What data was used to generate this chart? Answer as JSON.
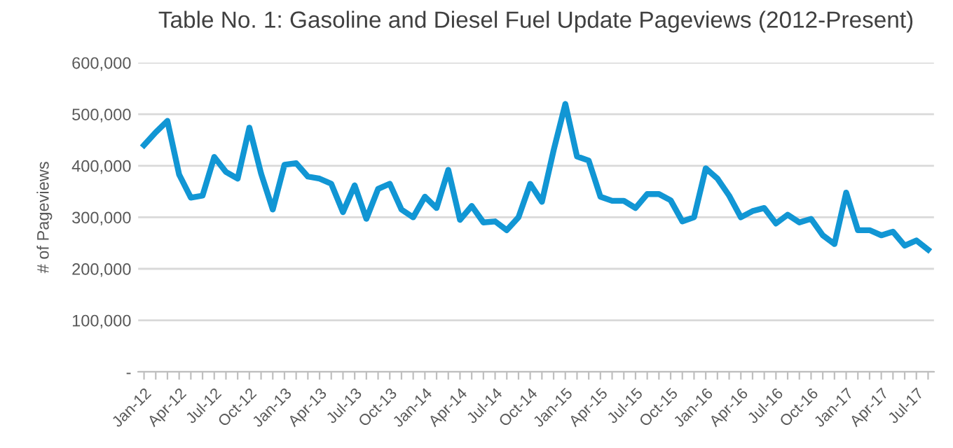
{
  "chart_data": {
    "type": "line",
    "title": "Table No. 1: Gasoline and Diesel Fuel Update Pageviews (2012-Present)",
    "ylabel": "# of Pageviews",
    "categories": [
      "Jan-12",
      null,
      null,
      "Apr-12",
      null,
      null,
      "Jul-12",
      null,
      null,
      "Oct-12",
      null,
      null,
      "Jan-13",
      null,
      null,
      "Apr-13",
      null,
      null,
      "Jul-13",
      null,
      null,
      "Oct-13",
      null,
      null,
      "Jan-14",
      null,
      null,
      "Apr-14",
      null,
      null,
      "Jul-14",
      null,
      null,
      "Oct-14",
      null,
      null,
      "Jan-15",
      null,
      null,
      "Apr-15",
      null,
      null,
      "Jul-15",
      null,
      null,
      "Oct-15",
      null,
      null,
      "Jan-16",
      null,
      null,
      "Apr-16",
      null,
      null,
      "Jul-16",
      null,
      null,
      "Oct-16",
      null,
      null,
      "Jan-17",
      null,
      null,
      "Apr-17",
      null,
      null,
      "Jul-17",
      null
    ],
    "series": [
      {
        "color": "#1196d4",
        "values": [
          440000,
          465000,
          487000,
          383000,
          338000,
          342000,
          417000,
          388000,
          375000,
          474000,
          385000,
          315000,
          402000,
          405000,
          379000,
          375000,
          365000,
          310000,
          362000,
          297000,
          355000,
          365000,
          315000,
          300000,
          340000,
          318000,
          392000,
          295000,
          322000,
          290000,
          292000,
          275000,
          300000,
          365000,
          330000,
          430000,
          520000,
          418000,
          410000,
          340000,
          332000,
          332000,
          318000,
          345000,
          345000,
          333000,
          292000,
          300000,
          395000,
          375000,
          342000,
          300000,
          312000,
          318000,
          288000,
          305000,
          290000,
          297000,
          265000,
          248000,
          348000,
          275000,
          275000,
          265000,
          272000,
          245000,
          255000,
          237000
        ]
      }
    ],
    "ylim": [
      0,
      600000
    ],
    "yticks": [
      {
        "value": 0,
        "label": "-"
      },
      {
        "value": 100000,
        "label": "100,000"
      },
      {
        "value": 200000,
        "label": "200,000"
      },
      {
        "value": 300000,
        "label": "300,000"
      },
      {
        "value": 400000,
        "label": "400,000"
      },
      {
        "value": 500000,
        "label": "500,000"
      },
      {
        "value": 600000,
        "label": "600,000"
      }
    ],
    "grid": "y",
    "legend": false,
    "marker": "none",
    "line_style": "solid"
  }
}
